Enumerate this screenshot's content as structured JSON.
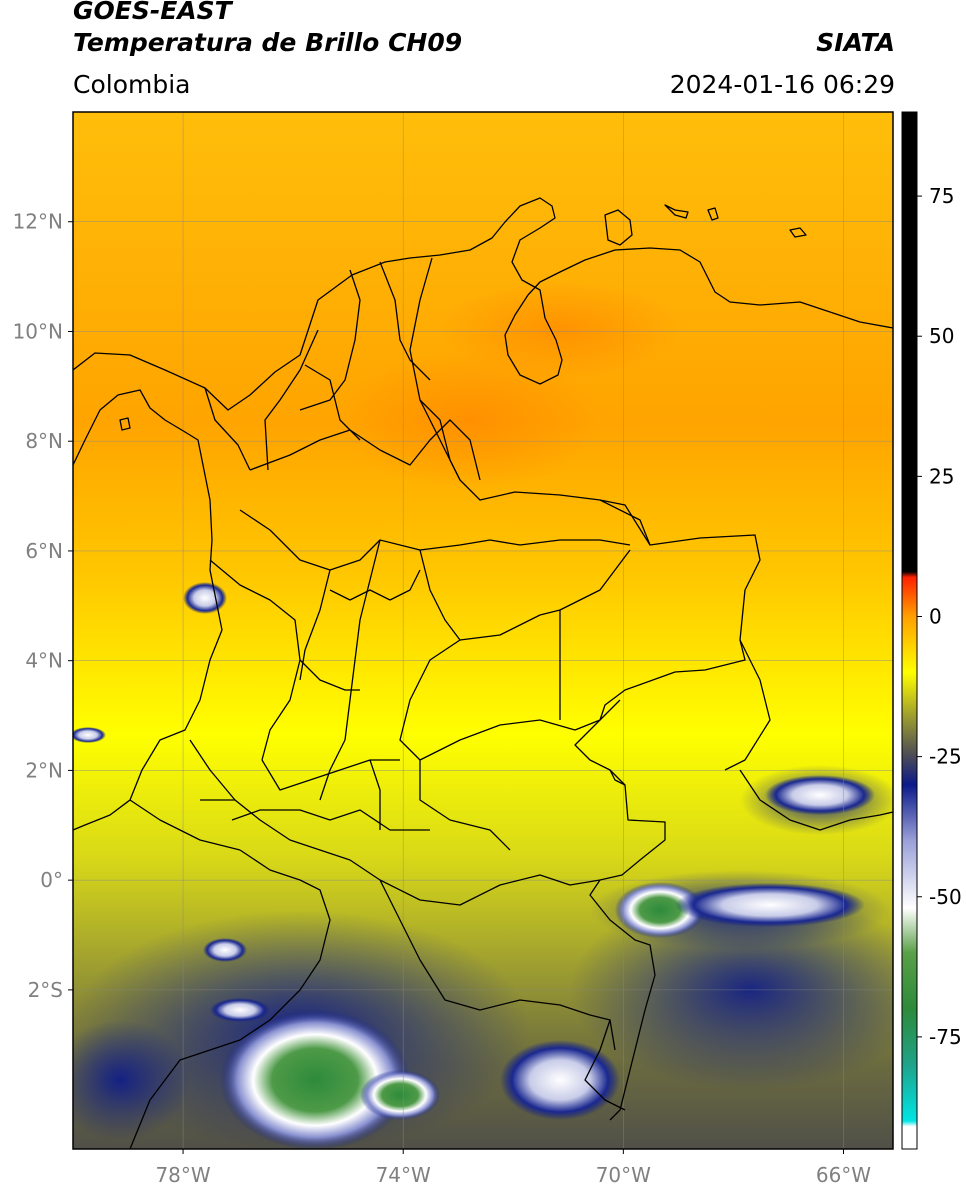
{
  "header": {
    "satellite": "GOES-EAST",
    "product": "Temperatura de Brillo CH09",
    "organization": "SIATA",
    "region": "Colombia",
    "timestamp": "2024-01-16 06:29"
  },
  "map": {
    "extent": {
      "lon_min": -80,
      "lon_max": -65.1,
      "lat_min": -4.9,
      "lat_max": 14
    },
    "lat_ticks": [
      {
        "value": 12,
        "label": "12°N"
      },
      {
        "value": 10,
        "label": "10°N"
      },
      {
        "value": 8,
        "label": "8°N"
      },
      {
        "value": 6,
        "label": "6°N"
      },
      {
        "value": 4,
        "label": "4°N"
      },
      {
        "value": 2,
        "label": "2°N"
      },
      {
        "value": 0,
        "label": "0°"
      },
      {
        "value": -2,
        "label": "2°S"
      }
    ],
    "lon_ticks": [
      {
        "value": -78,
        "label": "78°W"
      },
      {
        "value": -74,
        "label": "74°W"
      },
      {
        "value": -70,
        "label": "70°W"
      },
      {
        "value": -66,
        "label": "66°W"
      }
    ],
    "grid": true
  },
  "colorbar": {
    "min": -95,
    "max": 90,
    "ticks": [
      {
        "value": 75,
        "label": "75"
      },
      {
        "value": 50,
        "label": "50"
      },
      {
        "value": 25,
        "label": "25"
      },
      {
        "value": 0,
        "label": "0"
      },
      {
        "value": -25,
        "label": "-25"
      },
      {
        "value": -50,
        "label": "-50"
      },
      {
        "value": -75,
        "label": "-75"
      }
    ],
    "stops": [
      {
        "value": -95,
        "color": "#ffffff"
      },
      {
        "value": -91,
        "color": "#ffffff"
      },
      {
        "value": -90,
        "color": "#00e5e5"
      },
      {
        "value": -80,
        "color": "#1fa38a"
      },
      {
        "value": -70,
        "color": "#2d8b3a"
      },
      {
        "value": -60,
        "color": "#5aa048"
      },
      {
        "value": -52,
        "color": "#ffffff"
      },
      {
        "value": -40,
        "color": "#9aa0d8"
      },
      {
        "value": -30,
        "color": "#0c1a8a"
      },
      {
        "value": -25,
        "color": "#4a4a58"
      },
      {
        "value": -18,
        "color": "#9a9a30"
      },
      {
        "value": -10,
        "color": "#ffff00"
      },
      {
        "value": 0,
        "color": "#ffa000"
      },
      {
        "value": 7,
        "color": "#ff2000"
      },
      {
        "value": 8,
        "color": "#000000"
      },
      {
        "value": 90,
        "color": "#000000"
      }
    ]
  }
}
